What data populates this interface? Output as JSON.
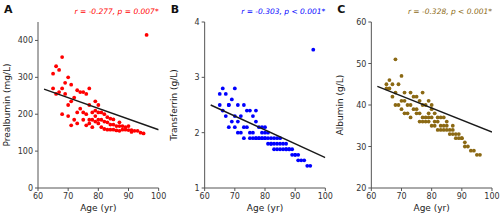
{
  "chart_data": [
    {
      "type": "scatter",
      "title": "A",
      "annotation": "r = -0.277, p = 0.007*",
      "x_label": "Age (yr)",
      "y_label": "Prealbumin (mg/L)",
      "xlim": [
        60,
        100
      ],
      "ylim": [
        0,
        450
      ],
      "xticks": [
        60,
        70,
        80,
        90,
        100
      ],
      "yticks": [
        0,
        100,
        200,
        300,
        400
      ],
      "series": [
        {
          "type": "scatter",
          "color": "#FF0000",
          "x": [
            65,
            65,
            66,
            66,
            67,
            67,
            68,
            68,
            68,
            69,
            69,
            70,
            70,
            70,
            71,
            71,
            71,
            72,
            72,
            73,
            73,
            73,
            74,
            74,
            75,
            75,
            75,
            76,
            76,
            76,
            77,
            77,
            77,
            77,
            78,
            78,
            78,
            79,
            79,
            79,
            79,
            80,
            80,
            80,
            80,
            81,
            81,
            81,
            82,
            82,
            82,
            83,
            83,
            83,
            84,
            84,
            84,
            85,
            85,
            85,
            86,
            86,
            87,
            87,
            87,
            88,
            88,
            89,
            89,
            90,
            90,
            91,
            91,
            92,
            93,
            94,
            95,
            96
          ],
          "values": [
            270,
            310,
            255,
            330,
            320,
            260,
            200,
            270,
            355,
            255,
            285,
            195,
            225,
            300,
            170,
            235,
            280,
            185,
            245,
            175,
            205,
            265,
            215,
            260,
            185,
            205,
            260,
            170,
            200,
            255,
            175,
            185,
            225,
            270,
            165,
            185,
            205,
            180,
            195,
            210,
            235,
            175,
            185,
            205,
            225,
            165,
            185,
            205,
            160,
            180,
            200,
            158,
            178,
            192,
            158,
            172,
            188,
            158,
            172,
            186,
            156,
            168,
            155,
            168,
            178,
            158,
            168,
            158,
            165,
            157,
            168,
            152,
            157,
            155,
            155,
            150,
            148,
            415
          ]
        },
        {
          "type": "line",
          "color": "#1a1a1a",
          "x": [
            62,
            100
          ],
          "values": [
            268,
            158
          ]
        }
      ]
    },
    {
      "type": "scatter",
      "title": "B",
      "annotation": "r = -0.303, p < 0.001*",
      "x_label": "Age (yr)",
      "y_label": "Transferrin (g/L)",
      "xlim": [
        60,
        100
      ],
      "ylim": [
        1,
        4
      ],
      "xticks": [
        60,
        70,
        80,
        90,
        100
      ],
      "yticks": [
        1,
        2,
        3,
        4
      ],
      "series": [
        {
          "type": "scatter",
          "color": "#0000FF",
          "x": [
            65,
            65,
            66,
            66,
            67,
            67,
            68,
            68,
            68,
            69,
            69,
            70,
            70,
            70,
            71,
            71,
            71,
            72,
            72,
            73,
            73,
            73,
            74,
            74,
            75,
            75,
            75,
            76,
            76,
            76,
            77,
            77,
            77,
            77,
            78,
            78,
            78,
            79,
            79,
            79,
            79,
            80,
            80,
            80,
            80,
            81,
            81,
            81,
            82,
            82,
            82,
            83,
            83,
            83,
            84,
            84,
            84,
            85,
            85,
            85,
            86,
            86,
            87,
            87,
            87,
            88,
            88,
            89,
            89,
            90,
            90,
            91,
            91,
            92,
            93,
            94,
            95,
            96
          ],
          "values": [
            2.5,
            2.7,
            2.8,
            2.4,
            2.7,
            2.3,
            2.1,
            2.5,
            2.5,
            2.2,
            2.6,
            2.1,
            2.3,
            2.8,
            2.0,
            2.2,
            2.5,
            2.0,
            2.3,
            1.9,
            2.1,
            2.5,
            2.1,
            2.4,
            1.9,
            2.0,
            2.4,
            1.9,
            2.0,
            2.3,
            1.9,
            1.9,
            2.2,
            2.4,
            1.9,
            1.9,
            2.1,
            1.9,
            1.9,
            2.0,
            2.1,
            1.9,
            1.9,
            2.0,
            2.1,
            1.8,
            1.9,
            2.0,
            1.8,
            1.8,
            1.9,
            1.7,
            1.8,
            1.9,
            1.7,
            1.8,
            1.9,
            1.7,
            1.8,
            1.9,
            1.7,
            1.8,
            1.7,
            1.7,
            1.8,
            1.7,
            1.7,
            1.6,
            1.7,
            1.6,
            1.6,
            1.5,
            1.6,
            1.5,
            1.5,
            1.4,
            1.4,
            3.5
          ]
        },
        {
          "type": "line",
          "color": "#1a1a1a",
          "x": [
            62,
            100
          ],
          "values": [
            2.5,
            1.55
          ]
        }
      ]
    },
    {
      "type": "scatter",
      "title": "C",
      "annotation": "r = -0.328, p < 0.001*",
      "x_label": "Age (yr)",
      "y_label": "Albumin (g/L)",
      "xlim": [
        60,
        100
      ],
      "ylim": [
        20,
        60
      ],
      "xticks": [
        60,
        70,
        80,
        90,
        100
      ],
      "yticks": [
        20,
        30,
        40,
        50,
        60
      ],
      "series": [
        {
          "type": "scatter",
          "color": "#8B6914",
          "x": [
            65,
            65,
            66,
            66,
            67,
            67,
            68,
            68,
            68,
            69,
            69,
            70,
            70,
            70,
            71,
            71,
            71,
            72,
            72,
            73,
            73,
            73,
            74,
            74,
            75,
            75,
            75,
            76,
            76,
            76,
            77,
            77,
            77,
            77,
            78,
            78,
            78,
            79,
            79,
            79,
            79,
            80,
            80,
            80,
            80,
            81,
            81,
            81,
            82,
            82,
            82,
            83,
            83,
            83,
            84,
            84,
            84,
            85,
            85,
            85,
            86,
            86,
            87,
            87,
            87,
            88,
            88,
            89,
            89,
            90,
            90,
            91,
            91,
            92,
            93,
            94,
            95,
            96
          ],
          "values": [
            44,
            45,
            44,
            46,
            45,
            42,
            40,
            43,
            51,
            40,
            45,
            39,
            41,
            47,
            38,
            41,
            43,
            38,
            40,
            37,
            40,
            43,
            39,
            42,
            38,
            39,
            42,
            36,
            38,
            41,
            36,
            37,
            40,
            43,
            36,
            37,
            40,
            36,
            37,
            38,
            41,
            35,
            37,
            39,
            40,
            35,
            36,
            38,
            34,
            36,
            37,
            34,
            35,
            37,
            34,
            35,
            37,
            34,
            35,
            36,
            33,
            34,
            33,
            34,
            35,
            32,
            33,
            32,
            33,
            32,
            32,
            30,
            31,
            30,
            29,
            29,
            28,
            28
          ]
        },
        {
          "type": "line",
          "color": "#1a1a1a",
          "x": [
            62,
            100
          ],
          "values": [
            44.5,
            33.5
          ]
        }
      ]
    }
  ]
}
